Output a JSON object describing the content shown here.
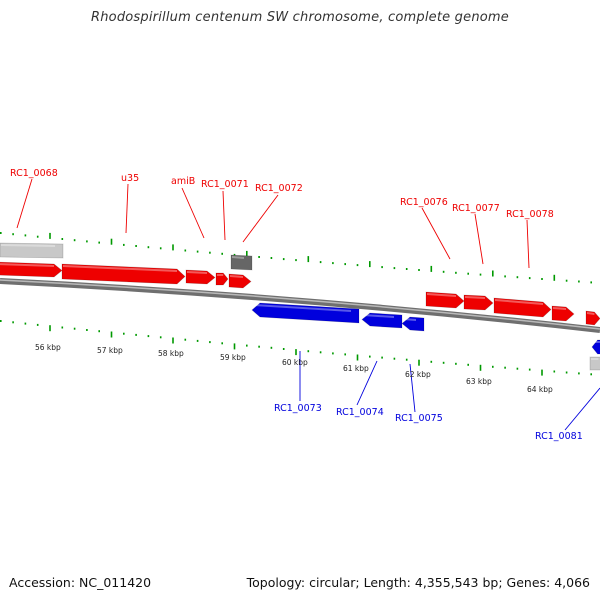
{
  "title": "Rhodospirillum centenum SW chromosome, complete genome",
  "footer": {
    "accession": "Accession: NC_011420",
    "summary": "Topology: circular; Length: 4,355,543 bp; Genes: 4,066"
  },
  "colors": {
    "forward": "#ee0000",
    "reverse": "#0000dd",
    "other": "#666666",
    "rna": "#c8c8c8",
    "tick": "#009900",
    "backbone": "#888888"
  },
  "scale": [
    "56 kbp",
    "57 kbp",
    "58 kbp",
    "59 kbp",
    "60 kbp",
    "61 kbp",
    "62 kbp",
    "63 kbp",
    "64 kbp"
  ],
  "genes": [
    {
      "id": "g68",
      "label": "RC1_0068",
      "strand": "forward"
    },
    {
      "id": "gu35",
      "label": "u35",
      "strand": "forward"
    },
    {
      "id": "gamiB",
      "label": "amiB",
      "strand": "forward"
    },
    {
      "id": "g71",
      "label": "RC1_0071",
      "strand": "forward"
    },
    {
      "id": "g72",
      "label": "RC1_0072",
      "strand": "other"
    },
    {
      "id": "g73",
      "label": "RC1_0073",
      "strand": "reverse"
    },
    {
      "id": "g74",
      "label": "RC1_0074",
      "strand": "reverse"
    },
    {
      "id": "g75",
      "label": "RC1_0075",
      "strand": "reverse"
    },
    {
      "id": "g76",
      "label": "RC1_0076",
      "strand": "forward"
    },
    {
      "id": "g77",
      "label": "RC1_0077",
      "strand": "forward"
    },
    {
      "id": "g78",
      "label": "RC1_0078",
      "strand": "forward"
    },
    {
      "id": "g81",
      "label": "RC1_0081",
      "strand": "reverse"
    }
  ]
}
